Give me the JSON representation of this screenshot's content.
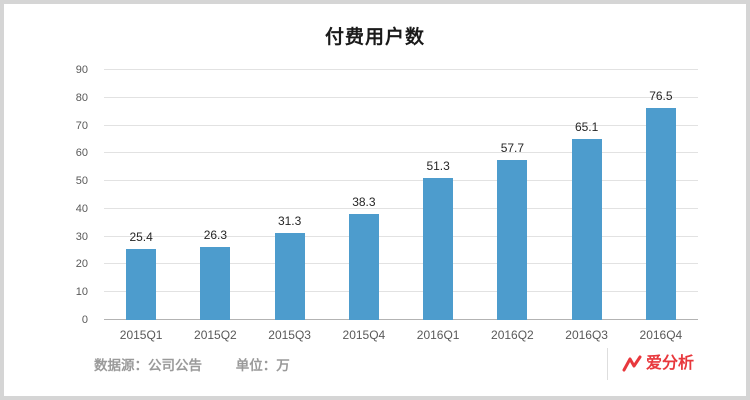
{
  "title": "付费用户数",
  "footer": {
    "source_label": "数据源：公司公告",
    "unit_label": "单位：万",
    "logo_text": "爱分析"
  },
  "colors": {
    "bar": "#4d9ccd",
    "grid": "#e2e2e2",
    "axis": "#b3b3b3",
    "logo_red": "#e8383d"
  },
  "chart_data": {
    "type": "bar",
    "title": "付费用户数",
    "categories": [
      "2015Q1",
      "2015Q2",
      "2015Q3",
      "2015Q4",
      "2016Q1",
      "2016Q2",
      "2016Q3",
      "2016Q4"
    ],
    "values": [
      25.4,
      26.3,
      31.3,
      38.3,
      51.3,
      57.7,
      65.1,
      76.5
    ],
    "xlabel": "",
    "ylabel": "",
    "ylim": [
      0,
      90
    ],
    "ytick_step": 10,
    "grid": true,
    "value_labels": true,
    "legend": "none",
    "unit": "万",
    "source": "公司公告"
  }
}
